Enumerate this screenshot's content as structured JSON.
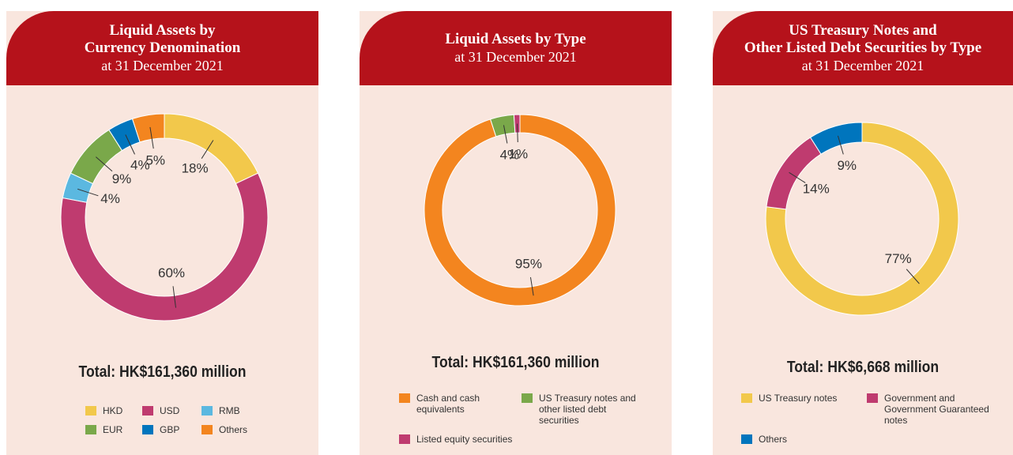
{
  "chart_data": [
    {
      "type": "pie",
      "donut": true,
      "title": [
        "Liquid Assets by",
        "Currency Denomination"
      ],
      "subtitle": "at 31 December 2021",
      "categories": [
        "HKD",
        "USD",
        "RMB",
        "EUR",
        "GBP",
        "Others"
      ],
      "values": [
        18,
        60,
        4,
        9,
        4,
        5
      ],
      "value_labels": [
        "18%",
        "60%",
        "4%",
        "9%",
        "4%",
        "5%"
      ],
      "colors": [
        "#f2c84b",
        "#bf3b6f",
        "#5bb8e0",
        "#7aa84a",
        "#0075bd",
        "#f3851f"
      ],
      "total": "Total: HK$161,360 million"
    },
    {
      "type": "pie",
      "donut": true,
      "title": [
        "Liquid Assets by Type"
      ],
      "subtitle": "at 31 December 2021",
      "categories": [
        "Cash and cash equivalents",
        "US Treasury notes and other listed debt securities",
        "Listed equity securities"
      ],
      "values": [
        95,
        4,
        1
      ],
      "value_labels": [
        "95%",
        "4%",
        "1%"
      ],
      "colors": [
        "#f3851f",
        "#7aa84a",
        "#bf3b6f"
      ],
      "total": "Total: HK$161,360 million"
    },
    {
      "type": "pie",
      "donut": true,
      "title": [
        "US Treasury Notes and",
        "Other Listed Debt Securities by Type"
      ],
      "subtitle": "at 31 December 2021",
      "categories": [
        "US Treasury notes",
        "Government and Government Guaranteed notes",
        "Others"
      ],
      "values": [
        77,
        14,
        9
      ],
      "value_labels": [
        "77%",
        "14%",
        "9%"
      ],
      "colors": [
        "#f2c84b",
        "#bf3b6f",
        "#0075bd"
      ],
      "total": "Total: HK$6,668 million"
    }
  ]
}
